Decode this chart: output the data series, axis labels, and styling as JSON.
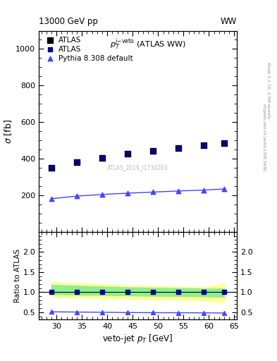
{
  "title_left": "13000 GeV pp",
  "title_right": "WW",
  "right_label_top": "Rivet 3.1.10, 2.5M events",
  "right_label_mid": "mcplots.cern.ch [arXiv:1306.3436]",
  "inner_title": "$p_T^{j\\text{-veto}}$ (ATLAS WW)",
  "ref_label": "ATLAS_2019_I1734263",
  "xlabel": "veto-jet $p_T$ [GeV]",
  "ylabel_main": "$\\sigma$ [fb]",
  "ylabel_ratio": "Ratio to ATLAS",
  "xlim": [
    26.5,
    65.5
  ],
  "ylim_main": [
    0,
    1100
  ],
  "ylim_ratio": [
    0.32,
    2.5
  ],
  "yticks_main": [
    200,
    400,
    600,
    800,
    1000
  ],
  "yticks_ratio": [
    0.5,
    1.0,
    1.5,
    2.0
  ],
  "x_data": [
    29,
    34,
    39,
    44,
    49,
    54,
    59,
    63
  ],
  "atlas_data_y": [
    350,
    383,
    403,
    428,
    443,
    458,
    475,
    487
  ],
  "pythia_y": [
    182,
    196,
    205,
    212,
    218,
    224,
    229,
    235
  ],
  "ratio_atlas_y": [
    1.0,
    1.0,
    1.0,
    1.0,
    1.0,
    1.0,
    1.0,
    1.0
  ],
  "ratio_pythia_y": [
    0.511,
    0.505,
    0.5,
    0.492,
    0.49,
    0.488,
    0.485,
    0.481
  ],
  "green_band_upper": [
    1.18,
    1.16,
    1.14,
    1.12,
    1.11,
    1.1,
    1.09,
    1.09
  ],
  "green_band_lower": [
    0.95,
    0.94,
    0.93,
    0.92,
    0.91,
    0.905,
    0.895,
    0.885
  ],
  "yellow_band_upper": [
    1.25,
    1.22,
    1.2,
    1.17,
    1.15,
    1.14,
    1.12,
    1.22
  ],
  "yellow_band_lower": [
    0.88,
    0.87,
    0.85,
    0.83,
    0.82,
    0.81,
    0.79,
    0.74
  ],
  "atlas1_color": "#000000",
  "atlas2_color": "#00008B",
  "pythia_color": "#4444FF",
  "green_color": "#90EE90",
  "yellow_color": "#FFFF99",
  "ref_color": "#BBBBBB"
}
